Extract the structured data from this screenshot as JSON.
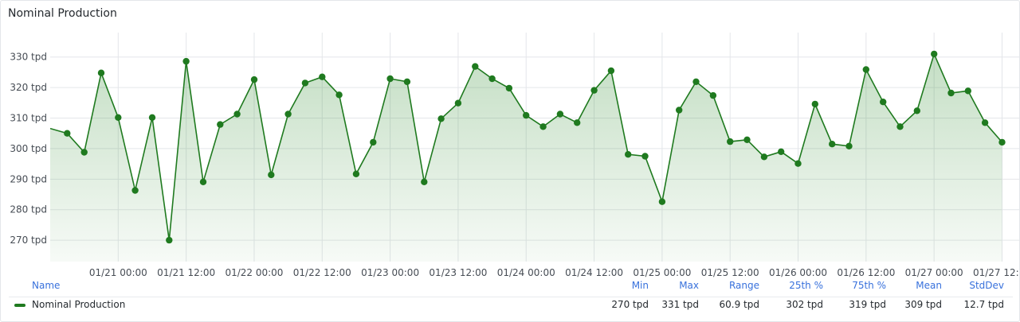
{
  "panel": {
    "title": "Nominal Production"
  },
  "colors": {
    "line": "#1f7a1f",
    "fill_top": "#2e8b2e",
    "grid": "#e4e6ea",
    "axis_text": "#464c54",
    "header": "#3871dc"
  },
  "legend": {
    "headers": {
      "name": "Name",
      "min": "Min",
      "max": "Max",
      "range": "Range",
      "p25": "25th %",
      "p75": "75th %",
      "mean": "Mean",
      "stddev": "StdDev"
    },
    "row": {
      "name": "Nominal Production",
      "min": "270 tpd",
      "max": "331 tpd",
      "range": "60.9 tpd",
      "p25": "302 tpd",
      "p75": "319 tpd",
      "mean": "309 tpd",
      "stddev": "12.7 tpd"
    }
  },
  "chart_data": {
    "type": "line",
    "title": "Nominal Production",
    "unit": "tpd",
    "y_ticks": [
      "270 tpd",
      "280 tpd",
      "290 tpd",
      "300 tpd",
      "310 tpd",
      "320 tpd",
      "330 tpd"
    ],
    "x_ticks": [
      "01/21 00:00",
      "01/21 12:00",
      "01/22 00:00",
      "01/22 12:00",
      "01/23 00:00",
      "01/23 12:00",
      "01/24 00:00",
      "01/24 12:00",
      "01/25 00:00",
      "01/25 12:00",
      "01/26 00:00",
      "01/26 12:00",
      "01/27 00:00",
      "01/27 12:00"
    ],
    "x_start": "2024-01-20T12:00",
    "x_step_hours": 3,
    "ylim": [
      263,
      338
    ],
    "fill": "gradient",
    "grid": true,
    "series": [
      {
        "name": "Nominal Production",
        "values": [
          306.6,
          305.0,
          298.8,
          324.8,
          310.2,
          286.3,
          310.2,
          270.0,
          328.6,
          289.1,
          307.9,
          311.3,
          322.6,
          291.4,
          311.3,
          321.5,
          323.5,
          317.6,
          291.7,
          302.1,
          322.9,
          321.9,
          289.1,
          309.8,
          314.9,
          326.9,
          322.9,
          319.8,
          310.9,
          307.2,
          311.3,
          308.5,
          319.1,
          325.5,
          298.1,
          297.5,
          282.6,
          312.6,
          321.9,
          317.4,
          302.3,
          302.9,
          297.3,
          299.0,
          295.1,
          314.6,
          301.5,
          300.8,
          325.9,
          315.3,
          307.2,
          312.4,
          331.0,
          318.2,
          318.9,
          308.5,
          302.1
        ]
      }
    ]
  }
}
